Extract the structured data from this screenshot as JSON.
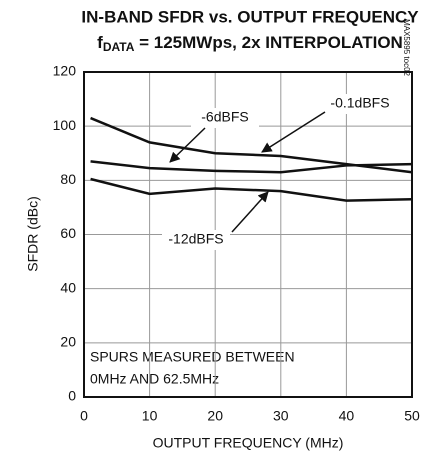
{
  "chart_data": {
    "type": "line",
    "title": "IN-BAND SFDR vs. OUTPUT FREQUENCY",
    "subtitle_parts": [
      "f",
      "DATA",
      " = 125MWps, 2x INTERPOLATION"
    ],
    "xlabel": "OUTPUT FREQUENCY (MHz)",
    "ylabel": "SFDR (dBc)",
    "note": "MAX5895 toc02",
    "annotation_lines": [
      "SPURS MEASURED BETWEEN",
      "0MHz AND 62.5MHz"
    ],
    "x": [
      1,
      10,
      20,
      30,
      40,
      50
    ],
    "series": [
      {
        "name": "-0.1dBFS",
        "color": "#111111",
        "values": [
          103,
          94,
          90,
          89,
          86,
          83
        ]
      },
      {
        "name": "-6dBFS",
        "color": "#111111",
        "values": [
          87,
          84.5,
          83.5,
          83,
          85.5,
          86
        ]
      },
      {
        "name": "-12dBFS",
        "color": "#111111",
        "values": [
          80.5,
          75,
          77,
          76,
          72.5,
          73
        ]
      }
    ],
    "xlim": [
      0,
      50
    ],
    "xticks": [
      0,
      10,
      20,
      30,
      40,
      50
    ],
    "ylim": [
      0,
      120
    ],
    "yticks": [
      0,
      20,
      40,
      60,
      80,
      100,
      120
    ],
    "grid": true
  }
}
